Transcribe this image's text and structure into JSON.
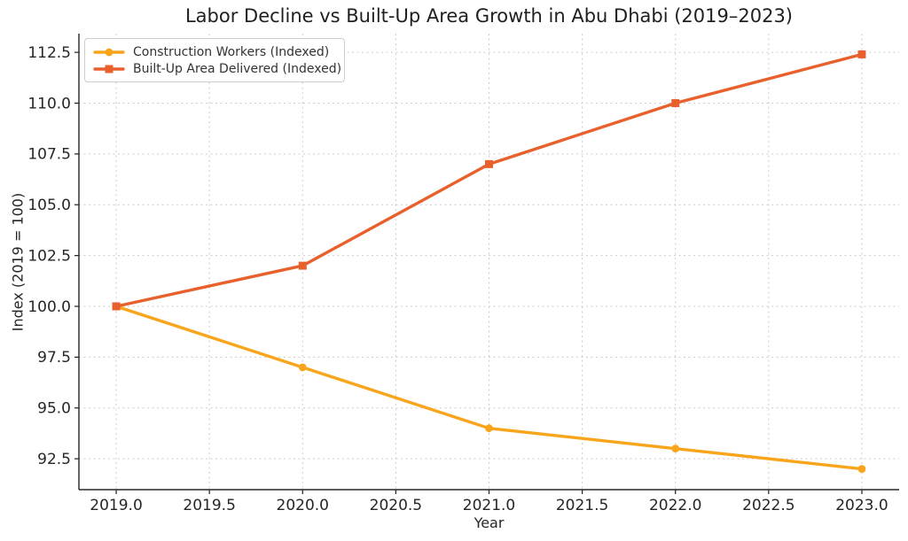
{
  "chart_data": {
    "type": "line",
    "title": "Labor Decline vs Built-Up Area Growth in Abu Dhabi (2019–2023)",
    "xlabel": "Year",
    "ylabel": "Index (2019 = 100)",
    "x": [
      2019,
      2020,
      2021,
      2022,
      2023
    ],
    "series": [
      {
        "name": "Construction Workers (Indexed)",
        "values": [
          100,
          97,
          94,
          93,
          92
        ],
        "color": "#F9A51B",
        "marker": "circle"
      },
      {
        "name": "Built-Up Area Delivered (Indexed)",
        "values": [
          100,
          102,
          107,
          110,
          112.4
        ],
        "color": "#E8612C",
        "marker": "square"
      }
    ],
    "xticks": {
      "values": [
        2019.0,
        2019.5,
        2020.0,
        2020.5,
        2021.0,
        2021.5,
        2022.0,
        2022.5,
        2023.0
      ],
      "labels": [
        "2019.0",
        "2019.5",
        "2020.0",
        "2020.5",
        "2021.0",
        "2021.5",
        "2022.0",
        "2022.5",
        "2023.0"
      ]
    },
    "yticks": {
      "values": [
        92.5,
        95.0,
        97.5,
        100.0,
        102.5,
        105.0,
        107.5,
        110.0,
        112.5
      ],
      "labels": [
        "92.5",
        "95.0",
        "97.5",
        "100.0",
        "102.5",
        "105.0",
        "107.5",
        "110.0",
        "112.5"
      ]
    },
    "xlim": [
      2018.8,
      2023.2
    ],
    "ylim": [
      90.98,
      113.42
    ],
    "grid": "dashed",
    "grid_color": "#cccccc",
    "axis_color": "#262626",
    "legend_position": "upper-left"
  }
}
